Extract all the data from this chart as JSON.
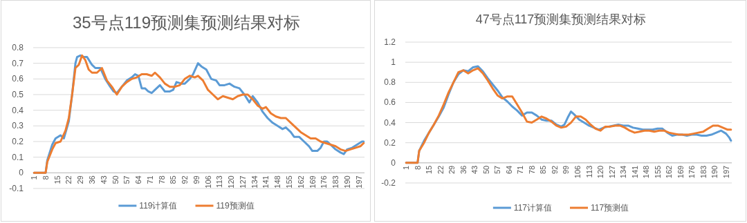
{
  "chart_data": [
    {
      "type": "line",
      "title": "35号点119预测集预测结果对标",
      "ylim": [
        -0.1,
        0.8
      ],
      "yticks": [
        -0.1,
        0,
        0.1,
        0.2,
        0.3,
        0.4,
        0.5,
        0.6,
        0.7,
        0.8
      ],
      "xlim": [
        0.5,
        200.5
      ],
      "xticks": [
        1,
        8,
        15,
        22,
        29,
        36,
        43,
        50,
        57,
        64,
        71,
        78,
        85,
        92,
        99,
        106,
        113,
        120,
        127,
        134,
        141,
        148,
        155,
        162,
        169,
        176,
        183,
        190,
        197
      ],
      "grid": "y",
      "legend": "bottom",
      "marker": "none",
      "line_style": "solid",
      "series": [
        {
          "name": "119计算值",
          "color": "#5b9bd5",
          "x": [
            1,
            8,
            9,
            12,
            14,
            17,
            19,
            22,
            24,
            26,
            27,
            29,
            31,
            33,
            36,
            38,
            41,
            44,
            47,
            49,
            51,
            54,
            57,
            60,
            62,
            64,
            66,
            68,
            70,
            72,
            74,
            77,
            80,
            83,
            85,
            87,
            90,
            92,
            95,
            97,
            100,
            102,
            105,
            108,
            111,
            113,
            116,
            119,
            122,
            125,
            128,
            131,
            133,
            136,
            139,
            142,
            145,
            148,
            151,
            153,
            156,
            158,
            161,
            164,
            167,
            169,
            172,
            174,
            176,
            178,
            180,
            183,
            186,
            188,
            190,
            193,
            196,
            199,
            200
          ],
          "values": [
            0,
            0,
            0.08,
            0.18,
            0.22,
            0.24,
            0.22,
            0.33,
            0.5,
            0.7,
            0.74,
            0.75,
            0.74,
            0.74,
            0.69,
            0.67,
            0.67,
            0.6,
            0.55,
            0.52,
            0.51,
            0.55,
            0.59,
            0.61,
            0.63,
            0.62,
            0.54,
            0.54,
            0.52,
            0.51,
            0.53,
            0.56,
            0.52,
            0.52,
            0.53,
            0.58,
            0.57,
            0.57,
            0.6,
            0.63,
            0.7,
            0.68,
            0.66,
            0.6,
            0.59,
            0.56,
            0.56,
            0.57,
            0.55,
            0.54,
            0.5,
            0.45,
            0.49,
            0.45,
            0.39,
            0.35,
            0.32,
            0.3,
            0.28,
            0.29,
            0.26,
            0.23,
            0.23,
            0.2,
            0.17,
            0.14,
            0.14,
            0.16,
            0.2,
            0.2,
            0.18,
            0.15,
            0.13,
            0.12,
            0.15,
            0.16,
            0.18,
            0.2,
            0.2
          ]
        },
        {
          "name": "119预测值",
          "color": "#ed7d31",
          "x": [
            1,
            8,
            9,
            12,
            14,
            17,
            20,
            22,
            24,
            26,
            28,
            30,
            32,
            34,
            36,
            39,
            42,
            45,
            48,
            51,
            54,
            57,
            60,
            63,
            66,
            69,
            72,
            74,
            77,
            80,
            83,
            86,
            89,
            92,
            95,
            98,
            100,
            103,
            106,
            109,
            112,
            115,
            118,
            121,
            124,
            127,
            130,
            133,
            136,
            139,
            141,
            144,
            147,
            150,
            153,
            156,
            159,
            162,
            165,
            168,
            171,
            174,
            177,
            180,
            183,
            186,
            189,
            192,
            195,
            198,
            200
          ],
          "values": [
            0,
            0,
            0.07,
            0.15,
            0.19,
            0.2,
            0.27,
            0.35,
            0.5,
            0.67,
            0.69,
            0.75,
            0.72,
            0.66,
            0.64,
            0.64,
            0.67,
            0.59,
            0.55,
            0.5,
            0.55,
            0.58,
            0.6,
            0.61,
            0.63,
            0.63,
            0.62,
            0.64,
            0.61,
            0.57,
            0.55,
            0.55,
            0.56,
            0.6,
            0.62,
            0.61,
            0.62,
            0.59,
            0.53,
            0.5,
            0.47,
            0.49,
            0.48,
            0.47,
            0.49,
            0.5,
            0.5,
            0.47,
            0.43,
            0.41,
            0.42,
            0.38,
            0.36,
            0.35,
            0.35,
            0.32,
            0.29,
            0.26,
            0.24,
            0.22,
            0.22,
            0.2,
            0.19,
            0.18,
            0.17,
            0.15,
            0.14,
            0.15,
            0.16,
            0.17,
            0.19
          ]
        }
      ]
    },
    {
      "type": "line",
      "title": "47号点117预测集预测结果对标",
      "ylim": [
        -0.2,
        1.2
      ],
      "yticks": [
        -0.2,
        0,
        0.2,
        0.4,
        0.6,
        0.8,
        1,
        1.2
      ],
      "xlim": [
        0.5,
        200.5
      ],
      "xticks": [
        1,
        8,
        15,
        22,
        29,
        36,
        43,
        50,
        57,
        64,
        71,
        78,
        85,
        92,
        99,
        106,
        113,
        120,
        127,
        134,
        141,
        148,
        155,
        162,
        169,
        176,
        183,
        190,
        197
      ],
      "grid": "y",
      "legend": "bottom",
      "marker": "none",
      "line_style": "solid",
      "series": [
        {
          "name": "117计算值",
          "color": "#5b9bd5",
          "x": [
            1,
            8,
            9,
            12,
            15,
            18,
            21,
            24,
            27,
            30,
            33,
            36,
            39,
            42,
            45,
            48,
            51,
            54,
            57,
            60,
            63,
            66,
            69,
            72,
            75,
            78,
            81,
            84,
            87,
            90,
            93,
            96,
            98,
            100,
            102,
            104,
            107,
            110,
            113,
            116,
            119,
            122,
            125,
            128,
            131,
            134,
            137,
            140,
            143,
            146,
            149,
            152,
            155,
            158,
            161,
            164,
            167,
            170,
            173,
            176,
            179,
            182,
            185,
            188,
            191,
            194,
            197,
            199,
            200
          ],
          "values": [
            0,
            0,
            0.12,
            0.22,
            0.3,
            0.38,
            0.46,
            0.55,
            0.68,
            0.8,
            0.88,
            0.92,
            0.91,
            0.95,
            0.96,
            0.91,
            0.84,
            0.78,
            0.72,
            0.65,
            0.61,
            0.56,
            0.52,
            0.47,
            0.5,
            0.5,
            0.47,
            0.43,
            0.42,
            0.42,
            0.38,
            0.36,
            0.38,
            0.45,
            0.51,
            0.48,
            0.43,
            0.4,
            0.37,
            0.35,
            0.33,
            0.35,
            0.36,
            0.37,
            0.38,
            0.37,
            0.37,
            0.35,
            0.34,
            0.33,
            0.33,
            0.33,
            0.34,
            0.34,
            0.3,
            0.27,
            0.28,
            0.28,
            0.27,
            0.28,
            0.28,
            0.27,
            0.27,
            0.28,
            0.3,
            0.32,
            0.29,
            0.25,
            0.22
          ]
        },
        {
          "name": "117预测值",
          "color": "#ed7d31",
          "x": [
            1,
            8,
            9,
            12,
            15,
            18,
            21,
            24,
            27,
            30,
            33,
            36,
            39,
            42,
            45,
            48,
            51,
            54,
            57,
            60,
            63,
            66,
            69,
            72,
            75,
            78,
            81,
            84,
            87,
            90,
            93,
            96,
            99,
            102,
            105,
            108,
            111,
            114,
            117,
            120,
            123,
            126,
            129,
            132,
            135,
            138,
            141,
            144,
            147,
            150,
            153,
            156,
            159,
            162,
            165,
            168,
            171,
            174,
            177,
            180,
            183,
            186,
            189,
            192,
            195,
            198,
            200
          ],
          "values": [
            0,
            0,
            0.12,
            0.2,
            0.3,
            0.38,
            0.47,
            0.58,
            0.7,
            0.8,
            0.9,
            0.92,
            0.89,
            0.92,
            0.94,
            0.89,
            0.82,
            0.74,
            0.67,
            0.64,
            0.66,
            0.66,
            0.58,
            0.5,
            0.41,
            0.4,
            0.43,
            0.46,
            0.44,
            0.41,
            0.37,
            0.35,
            0.36,
            0.4,
            0.46,
            0.46,
            0.43,
            0.38,
            0.34,
            0.32,
            0.36,
            0.36,
            0.37,
            0.37,
            0.35,
            0.32,
            0.3,
            0.31,
            0.32,
            0.32,
            0.31,
            0.32,
            0.32,
            0.3,
            0.29,
            0.28,
            0.28,
            0.28,
            0.29,
            0.3,
            0.31,
            0.34,
            0.37,
            0.37,
            0.35,
            0.33,
            0.33
          ]
        }
      ]
    }
  ]
}
